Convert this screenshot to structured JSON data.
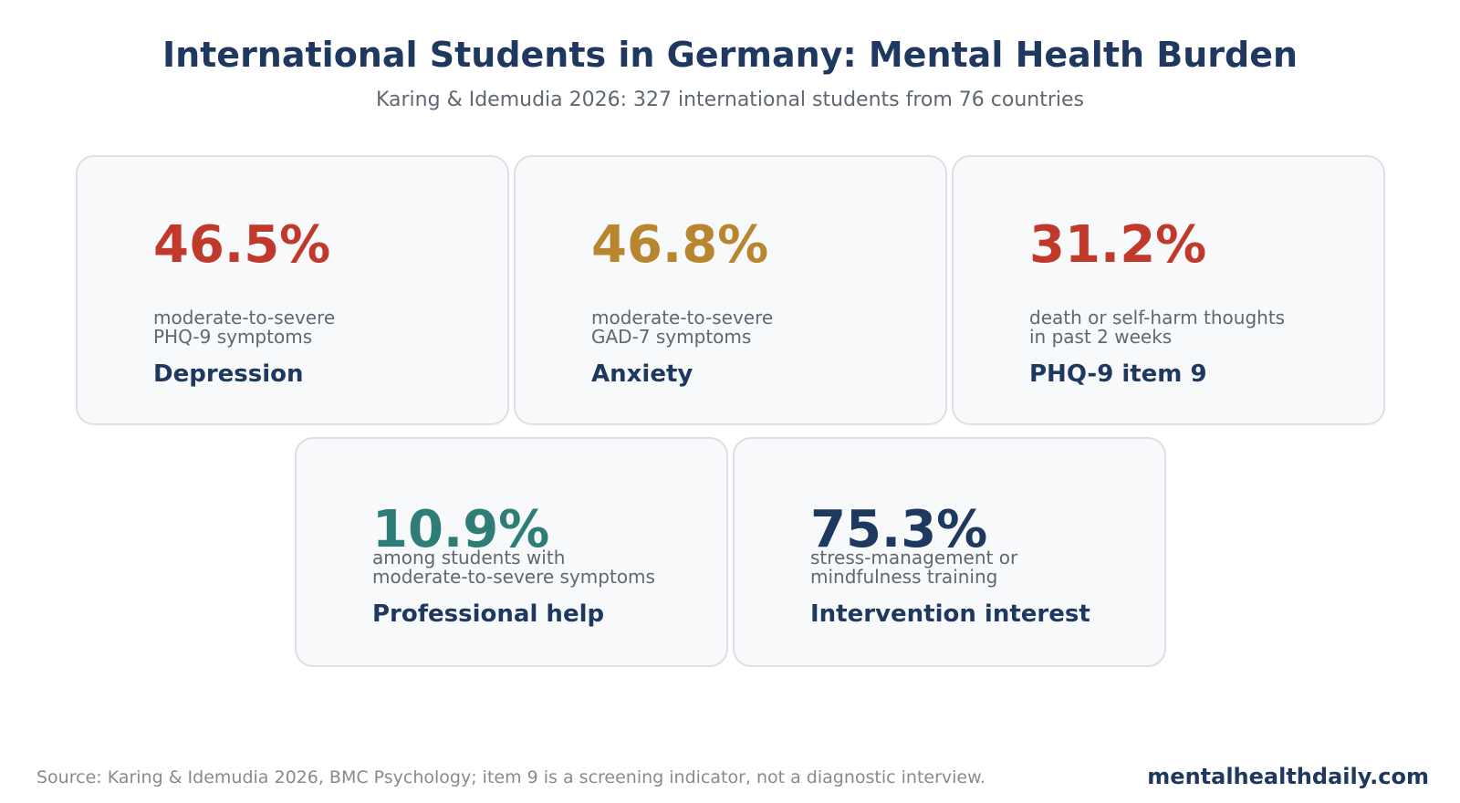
{
  "header": {
    "title": "International Students in Germany: Mental Health Burden",
    "subtitle": "Karing & Idemudia 2026: 327 international students from 76 countries"
  },
  "cards": [
    {
      "value": "46.5%",
      "color": "#c0392b",
      "desc_line1": "moderate-to-severe",
      "desc_line2": "PHQ-9 symptoms",
      "label": "Depression"
    },
    {
      "value": "46.8%",
      "color": "#b8862f",
      "desc_line1": "moderate-to-severe",
      "desc_line2": "GAD-7 symptoms",
      "label": "Anxiety"
    },
    {
      "value": "31.2%",
      "color": "#c0392b",
      "desc_line1": "death or self-harm thoughts",
      "desc_line2": "in past 2 weeks",
      "label": "PHQ-9 item 9"
    },
    {
      "value": "10.9%",
      "color": "#2e7d77",
      "desc_line1": "among students with",
      "desc_line2": "moderate-to-severe symptoms",
      "label": "Professional help"
    },
    {
      "value": "75.3%",
      "color": "#1f3860",
      "desc_line1": "stress-management or",
      "desc_line2": "mindfulness training",
      "label": "Intervention interest"
    }
  ],
  "footer": {
    "source": "Source: Karing & Idemudia 2026, BMC Psychology; item 9 is a screening indicator, not a diagnostic interview.",
    "brand": "mentalhealthdaily.com"
  }
}
